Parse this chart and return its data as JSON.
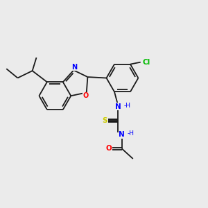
{
  "background_color": "#ebebeb",
  "bond_color": "#1a1a1a",
  "atom_colors": {
    "N": "#0000ff",
    "O": "#ff0000",
    "S": "#cccc00",
    "Cl": "#00bb00",
    "C": "#1a1a1a",
    "H": "#555555"
  },
  "figsize": [
    3.0,
    3.0
  ],
  "dpi": 100
}
